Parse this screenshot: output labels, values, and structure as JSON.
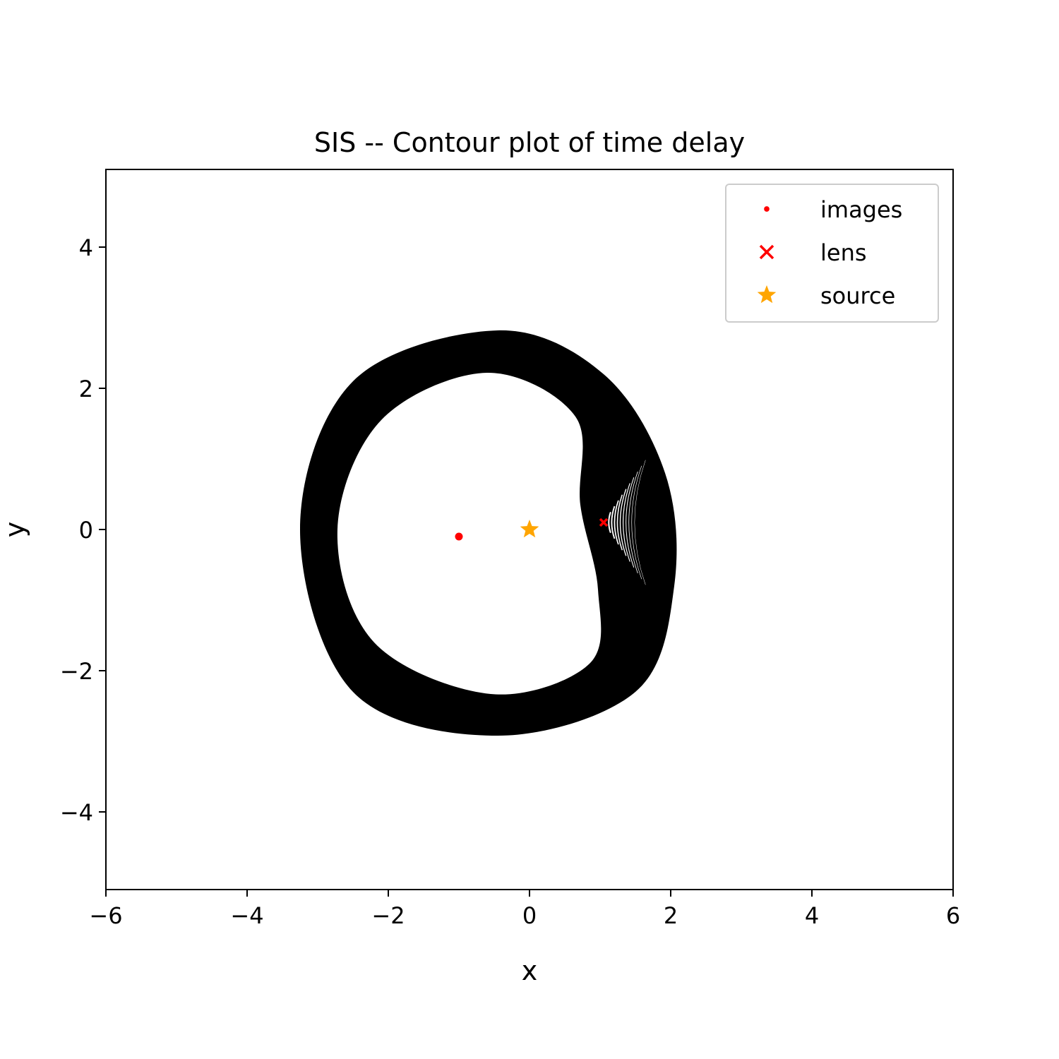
{
  "chart_data": {
    "type": "contour",
    "title": "SIS -- Contour plot of time delay",
    "xlabel": "x",
    "ylabel": "y",
    "xlim": [
      -6,
      6
    ],
    "ylim": [
      -5.1,
      5.1
    ],
    "x_ticks": [
      -6,
      -4,
      -2,
      0,
      2,
      4,
      6
    ],
    "x_tick_labels": [
      "−6",
      "−4",
      "−2",
      "0",
      "2",
      "4",
      "6"
    ],
    "y_ticks": [
      -4,
      -2,
      0,
      2,
      4
    ],
    "y_tick_labels": [
      "−4",
      "−2",
      "0",
      "2",
      "4"
    ],
    "grid": false,
    "legend": {
      "position": "top-right",
      "entries": [
        {
          "label": "images",
          "marker": "dot",
          "color": "#ff0000"
        },
        {
          "label": "lens",
          "marker": "x",
          "color": "#ff0000"
        },
        {
          "label": "source",
          "marker": "star",
          "color": "#ffa500"
        }
      ]
    },
    "series": [
      {
        "name": "images",
        "marker": "dot",
        "color": "#ff0000",
        "points": [
          [
            -1.0,
            -0.1
          ]
        ]
      },
      {
        "name": "lens",
        "marker": "x",
        "color": "#ff0000",
        "points": [
          [
            1.05,
            0.1
          ]
        ]
      },
      {
        "name": "source",
        "marker": "star",
        "color": "#ffa500",
        "points": [
          [
            0.0,
            0.0
          ]
        ]
      }
    ],
    "contours": {
      "color": "#000000",
      "center": [
        1.05,
        0.1
      ],
      "outer_boundary": [
        [
          -0.45,
          2.82
        ],
        [
          1.05,
          2.2
        ],
        [
          1.92,
          0.8
        ],
        [
          2.05,
          -0.8
        ],
        [
          1.5,
          -2.3
        ],
        [
          -0.45,
          -2.92
        ],
        [
          -2.5,
          -2.3
        ],
        [
          -3.25,
          0.0
        ],
        [
          -2.5,
          2.1
        ]
      ],
      "inner_boundary": [
        [
          -0.6,
          2.22
        ],
        [
          0.65,
          1.6
        ],
        [
          0.72,
          0.35
        ],
        [
          0.97,
          -0.85
        ],
        [
          0.85,
          -1.9
        ],
        [
          -0.55,
          -2.33
        ],
        [
          -2.2,
          -1.6
        ],
        [
          -2.72,
          0.0
        ],
        [
          -2.1,
          1.55
        ]
      ]
    }
  }
}
